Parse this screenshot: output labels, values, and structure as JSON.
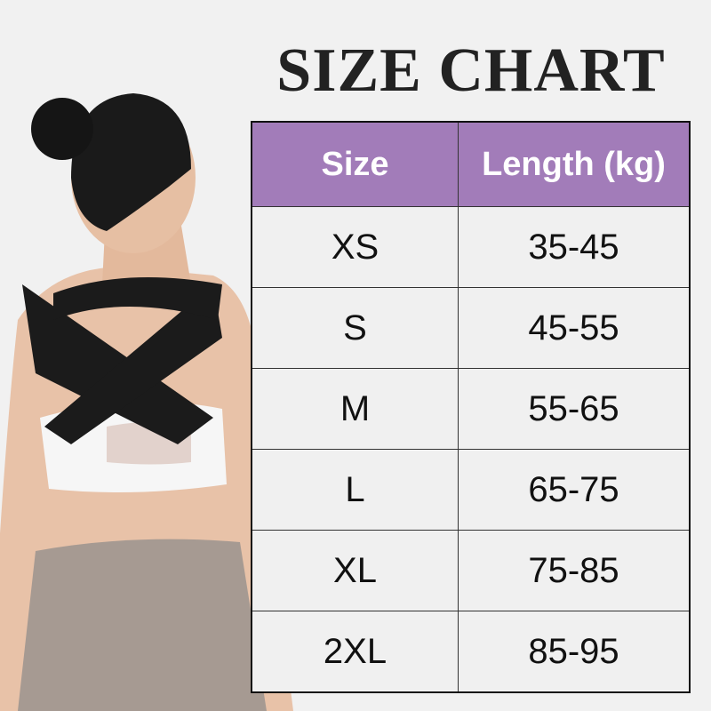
{
  "title": "SIZE CHART",
  "header_color": "#a27cb9",
  "table": {
    "headers": [
      "Size",
      "Length (kg)"
    ],
    "rows": [
      [
        "XS",
        "35-45"
      ],
      [
        "S",
        "45-55"
      ],
      [
        "M",
        "55-65"
      ],
      [
        "L",
        "65-75"
      ],
      [
        "XL",
        "75-85"
      ],
      [
        "2XL",
        "85-95"
      ]
    ]
  }
}
